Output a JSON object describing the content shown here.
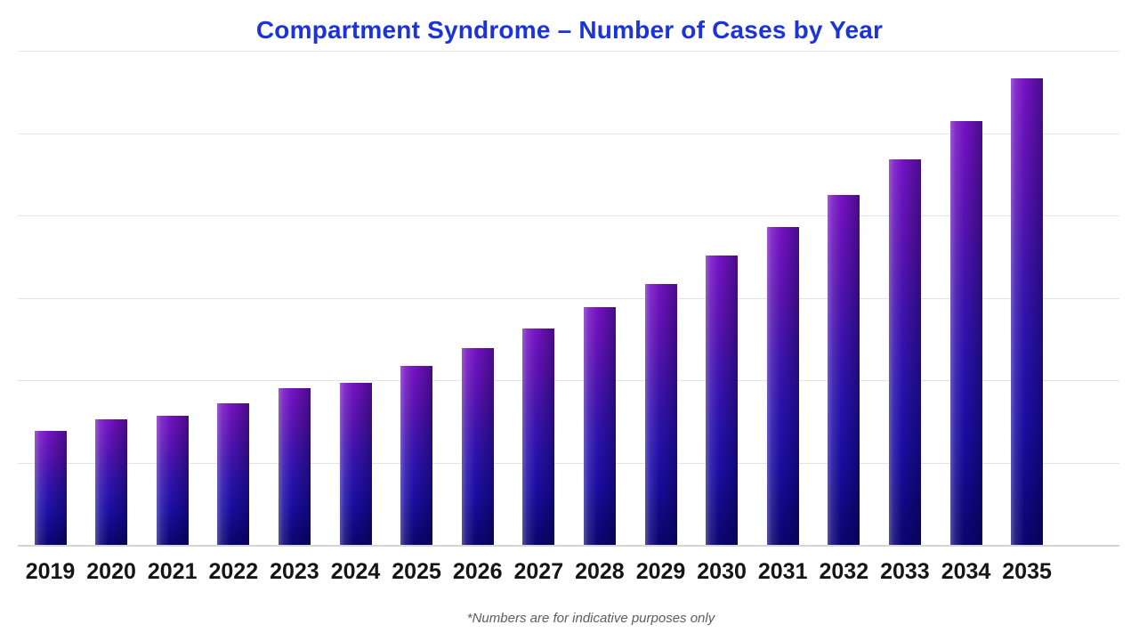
{
  "title": {
    "text": "Compartment Syndrome – Number of Cases by Year"
  },
  "footnote": "*Numbers are for indicative purposes only",
  "colors": {
    "title_blue": "#1a33dd",
    "bar_top_purple": "#7513c4",
    "bar_mid_blue": "#2a12ab",
    "bar_bottom_navy": "#0a0570",
    "bar_highlight_left": "rgba(255,255,255,0.30)",
    "bar_shadow_right": "rgba(0,0,40,0.38)",
    "gridline": "#e4e4e8",
    "baseline": "#d5d5d8",
    "x_label": "#151515",
    "footnote_gray": "#5d5d5d"
  },
  "chart_data": {
    "type": "bar",
    "title": "Compartment Syndrome – Number of Cases by Year",
    "categories": [
      "2019",
      "2020",
      "2021",
      "2022",
      "2023",
      "2024",
      "2025",
      "2026",
      "2027",
      "2028",
      "2029",
      "2030",
      "2031",
      "2032",
      "2033",
      "2034",
      "2035"
    ],
    "values": [
      138,
      152,
      157,
      172,
      190,
      197,
      217,
      239,
      263,
      289,
      317,
      351,
      386,
      425,
      468,
      515,
      567
    ],
    "xlabel": "",
    "ylabel": "",
    "ylim": [
      0,
      600
    ],
    "gridline_step": 100,
    "grid": true,
    "y_tick_labels_visible": false,
    "legend": "none",
    "annotation": "*Numbers are for indicative purposes only"
  }
}
